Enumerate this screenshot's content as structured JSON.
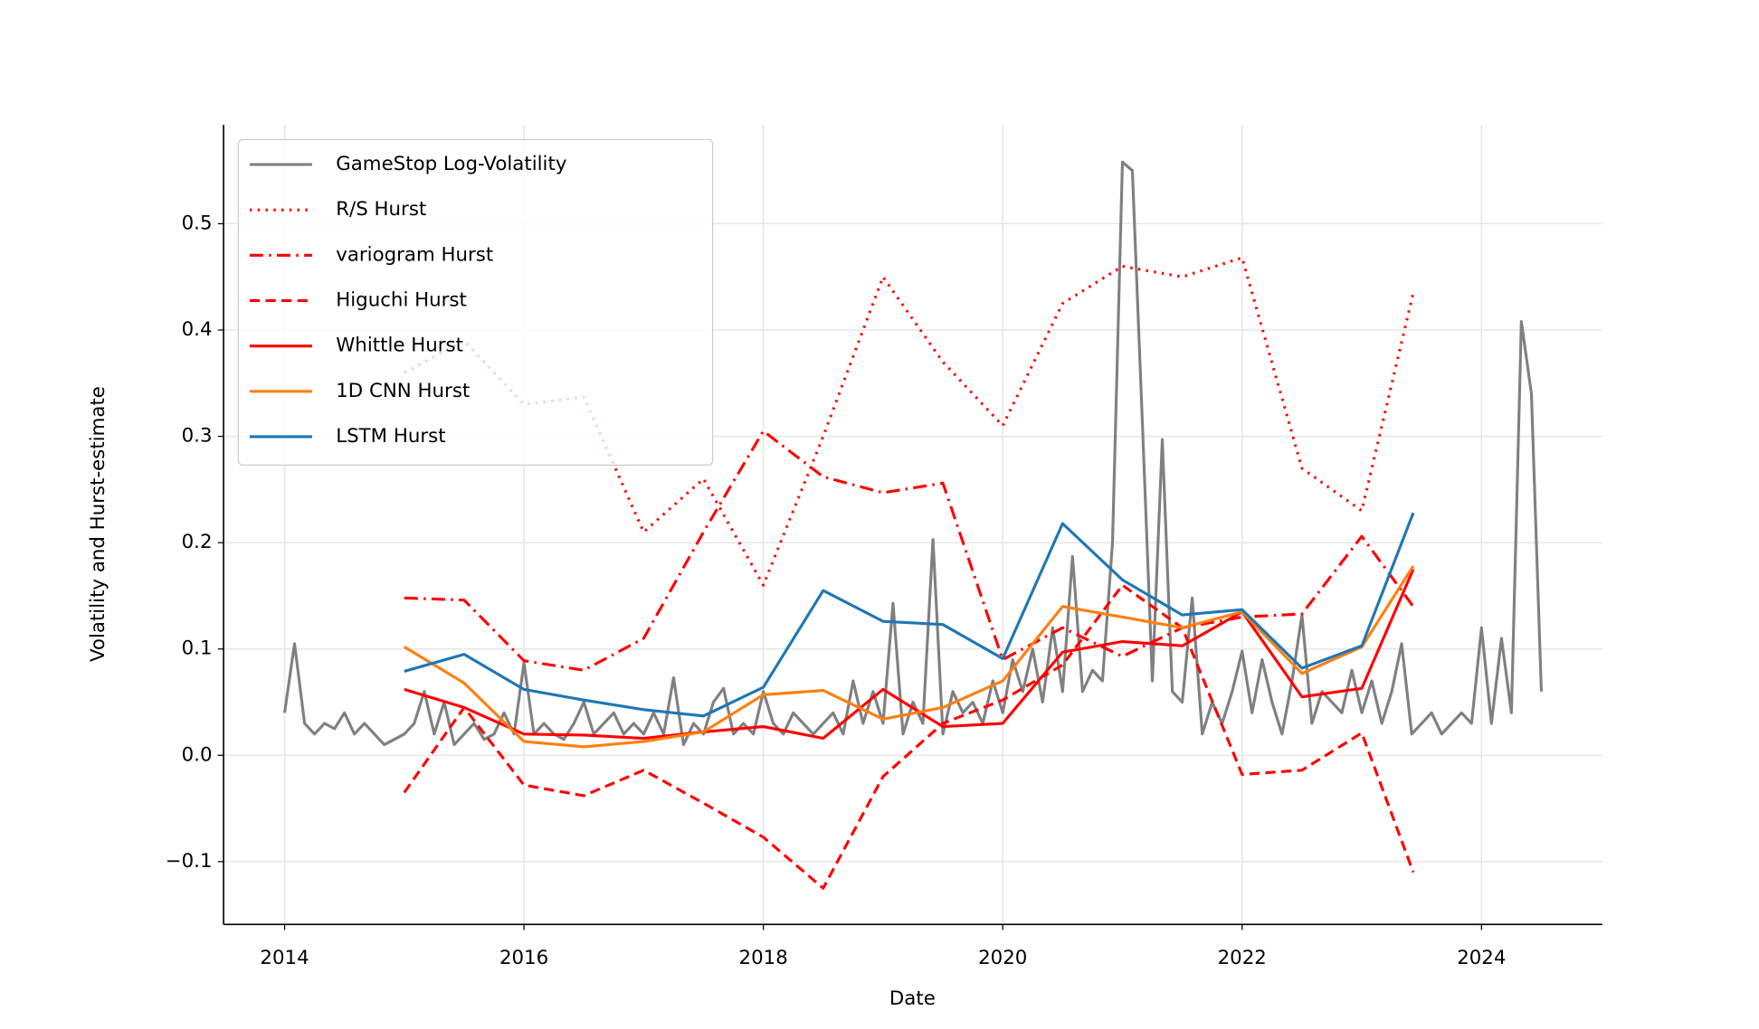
{
  "chart_data": {
    "type": "line",
    "xlabel": "Date",
    "ylabel": "Volatility and Hurst-estimate",
    "xlim": [
      2013.49,
      2025.01
    ],
    "xticks": [
      2014,
      2016,
      2018,
      2020,
      2022,
      2024
    ],
    "ylim": [
      -0.159,
      0.593
    ],
    "yticks": [
      {
        "value": -0.1,
        "label": "−0.1"
      },
      {
        "value": 0,
        "label": "0.0"
      },
      0.1,
      0.2,
      0.3,
      0.4,
      0.5
    ],
    "grid": true,
    "legend": "upper left",
    "series": [
      {
        "name": "GameStop Log-Volatility",
        "color": "#808080",
        "style": "solid",
        "x": [
          2014,
          2014.083,
          2014.167,
          2014.25,
          2014.333,
          2014.417,
          2014.5,
          2014.583,
          2014.667,
          2014.75,
          2014.833,
          2014.917,
          2015,
          2015.083,
          2015.167,
          2015.25,
          2015.333,
          2015.417,
          2015.5,
          2015.583,
          2015.667,
          2015.75,
          2015.833,
          2015.917,
          2016,
          2016.083,
          2016.167,
          2016.25,
          2016.333,
          2016.417,
          2016.5,
          2016.583,
          2016.667,
          2016.75,
          2016.833,
          2016.917,
          2017,
          2017.083,
          2017.167,
          2017.25,
          2017.333,
          2017.417,
          2017.5,
          2017.583,
          2017.667,
          2017.75,
          2017.833,
          2017.917,
          2018,
          2018.083,
          2018.167,
          2018.25,
          2018.333,
          2018.417,
          2018.5,
          2018.583,
          2018.667,
          2018.75,
          2018.833,
          2018.917,
          2019,
          2019.083,
          2019.167,
          2019.25,
          2019.333,
          2019.417,
          2019.5,
          2019.583,
          2019.667,
          2019.75,
          2019.833,
          2019.917,
          2020,
          2020.083,
          2020.167,
          2020.25,
          2020.333,
          2020.417,
          2020.5,
          2020.583,
          2020.667,
          2020.75,
          2020.833,
          2020.917,
          2021,
          2021.083,
          2021.167,
          2021.25,
          2021.333,
          2021.417,
          2021.5,
          2021.583,
          2021.667,
          2021.75,
          2021.833,
          2021.917,
          2022,
          2022.083,
          2022.167,
          2022.25,
          2022.333,
          2022.417,
          2022.5,
          2022.583,
          2022.667,
          2022.75,
          2022.833,
          2022.917,
          2023,
          2023.083,
          2023.167,
          2023.25,
          2023.333,
          2023.417,
          2023.5,
          2023.583,
          2023.667,
          2023.75,
          2023.833,
          2023.917,
          2024,
          2024.083,
          2024.167,
          2024.25,
          2024.333,
          2024.417,
          2024.5
        ],
        "values": [
          0.04,
          0.105,
          0.03,
          0.02,
          0.03,
          0.025,
          0.04,
          0.02,
          0.03,
          0.02,
          0.01,
          0.015,
          0.02,
          0.03,
          0.06,
          0.02,
          0.05,
          0.01,
          0.02,
          0.03,
          0.015,
          0.02,
          0.04,
          0.02,
          0.087,
          0.02,
          0.03,
          0.02,
          0.015,
          0.03,
          0.05,
          0.02,
          0.03,
          0.04,
          0.02,
          0.03,
          0.02,
          0.04,
          0.02,
          0.073,
          0.01,
          0.03,
          0.02,
          0.05,
          0.063,
          0.02,
          0.03,
          0.02,
          0.06,
          0.03,
          0.02,
          0.04,
          0.03,
          0.02,
          0.03,
          0.04,
          0.02,
          0.07,
          0.03,
          0.06,
          0.03,
          0.143,
          0.02,
          0.05,
          0.03,
          0.203,
          0.02,
          0.06,
          0.04,
          0.05,
          0.03,
          0.07,
          0.04,
          0.09,
          0.06,
          0.1,
          0.05,
          0.12,
          0.06,
          0.187,
          0.06,
          0.08,
          0.07,
          0.2,
          0.558,
          0.55,
          0.312,
          0.07,
          0.297,
          0.06,
          0.05,
          0.148,
          0.02,
          0.05,
          0.03,
          0.06,
          0.098,
          0.04,
          0.09,
          0.05,
          0.02,
          0.07,
          0.132,
          0.03,
          0.06,
          0.05,
          0.04,
          0.08,
          0.04,
          0.07,
          0.03,
          0.06,
          0.105,
          0.02,
          0.03,
          0.04,
          0.02,
          0.03,
          0.04,
          0.03,
          0.12,
          0.03,
          0.11,
          0.04,
          0.408,
          0.34,
          0.06
        ]
      },
      {
        "name": "R/S Hurst",
        "color": "#ff0000",
        "style": "dotted",
        "x": [
          2015,
          2015.5,
          2016,
          2016.5,
          2017,
          2017.5,
          2018,
          2018.5,
          2019,
          2019.5,
          2020,
          2020.5,
          2021,
          2021.5,
          2022,
          2022.5,
          2023,
          2023.43
        ],
        "values": [
          0.36,
          0.39,
          0.33,
          0.337,
          0.21,
          0.26,
          0.16,
          0.3,
          0.45,
          0.37,
          0.31,
          0.425,
          0.46,
          0.45,
          0.468,
          0.27,
          0.23,
          0.435
        ]
      },
      {
        "name": "variogram Hurst",
        "color": "#ff0000",
        "style": "dashdot",
        "x": [
          2015,
          2015.5,
          2016,
          2016.5,
          2017,
          2017.5,
          2018,
          2018.5,
          2019,
          2019.5,
          2020,
          2020.5,
          2021,
          2021.5,
          2022,
          2022.5,
          2023,
          2023.43
        ],
        "values": [
          0.148,
          0.146,
          0.089,
          0.08,
          0.11,
          0.21,
          0.305,
          0.262,
          0.247,
          0.256,
          0.09,
          0.12,
          0.093,
          0.12,
          0.13,
          0.133,
          0.206,
          0.14
        ]
      },
      {
        "name": "Higuchi Hurst",
        "color": "#ff0000",
        "style": "dashed",
        "x": [
          2015,
          2015.5,
          2016,
          2016.5,
          2017,
          2017.5,
          2018,
          2018.5,
          2019,
          2019.5,
          2020,
          2020.5,
          2021,
          2021.5,
          2022,
          2022.5,
          2023,
          2023.43
        ],
        "values": [
          -0.035,
          0.045,
          -0.028,
          -0.038,
          -0.014,
          -0.045,
          -0.077,
          -0.125,
          -0.02,
          0.03,
          0.052,
          0.085,
          0.16,
          0.12,
          -0.018,
          -0.014,
          0.021,
          -0.11
        ]
      },
      {
        "name": "Whittle Hurst",
        "color": "#ff0000",
        "style": "solid",
        "x": [
          2015,
          2015.5,
          2016,
          2016.5,
          2017,
          2017.5,
          2018,
          2018.5,
          2019,
          2019.5,
          2020,
          2020.5,
          2021,
          2021.5,
          2022,
          2022.5,
          2023,
          2023.43
        ],
        "values": [
          0.062,
          0.045,
          0.02,
          0.019,
          0.016,
          0.022,
          0.027,
          0.016,
          0.062,
          0.027,
          0.03,
          0.097,
          0.107,
          0.103,
          0.135,
          0.055,
          0.063,
          0.175
        ]
      },
      {
        "name": "1D CNN Hurst",
        "color": "#ff7f0e",
        "style": "solid",
        "x": [
          2015,
          2015.5,
          2016,
          2016.5,
          2017,
          2017.5,
          2018,
          2018.5,
          2019,
          2019.5,
          2020,
          2020.5,
          2021,
          2021.5,
          2022,
          2022.5,
          2023,
          2023.43
        ],
        "values": [
          0.102,
          0.068,
          0.013,
          0.008,
          0.013,
          0.022,
          0.057,
          0.061,
          0.034,
          0.045,
          0.07,
          0.14,
          0.13,
          0.12,
          0.135,
          0.077,
          0.102,
          0.178
        ]
      },
      {
        "name": "LSTM Hurst",
        "color": "#1f77b4",
        "style": "solid",
        "x": [
          2015,
          2015.5,
          2016,
          2016.5,
          2017,
          2017.5,
          2018,
          2018.5,
          2019,
          2019.5,
          2020,
          2020.5,
          2021,
          2021.5,
          2022,
          2022.5,
          2023,
          2023.43
        ],
        "values": [
          0.079,
          0.095,
          0.062,
          0.052,
          0.043,
          0.037,
          0.064,
          0.155,
          0.126,
          0.123,
          0.091,
          0.218,
          0.165,
          0.132,
          0.137,
          0.082,
          0.103,
          0.228
        ]
      }
    ]
  }
}
